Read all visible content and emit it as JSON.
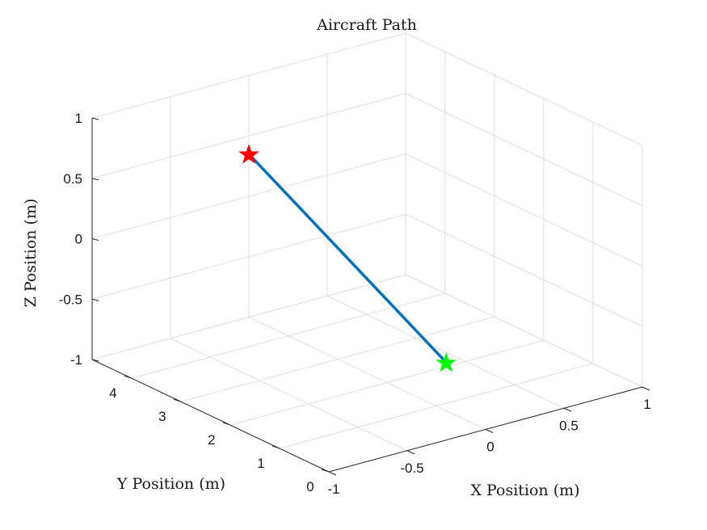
{
  "chart_data": {
    "type": "line3d",
    "title": "Aircraft Path",
    "xlabel": "X Position (m)",
    "ylabel": "Y Position (m)",
    "zlabel": "Z Position (m)",
    "xlim": [
      -1,
      1
    ],
    "ylim": [
      0,
      4.8
    ],
    "zlim": [
      -1,
      1
    ],
    "xticks": [
      "-1",
      "-0.5",
      "0",
      "0.5",
      "1"
    ],
    "yticks": [
      "0",
      "1",
      "2",
      "3",
      "4"
    ],
    "zticks": [
      "-1",
      "-0.5",
      "0",
      "0.5",
      "1"
    ],
    "grid": true,
    "series": [
      {
        "x": [
          0,
          0
        ],
        "y": [
          0.8,
          4.8
        ],
        "z": [
          -0.6,
          0.35
        ],
        "color": "#0072BD"
      }
    ],
    "markers": [
      {
        "x": 0,
        "y": 4.8,
        "z": 0.35,
        "shape": "star",
        "color": "#ff0000"
      },
      {
        "x": 0,
        "y": 0.8,
        "z": -0.6,
        "shape": "star",
        "color": "#00ff00"
      }
    ]
  }
}
